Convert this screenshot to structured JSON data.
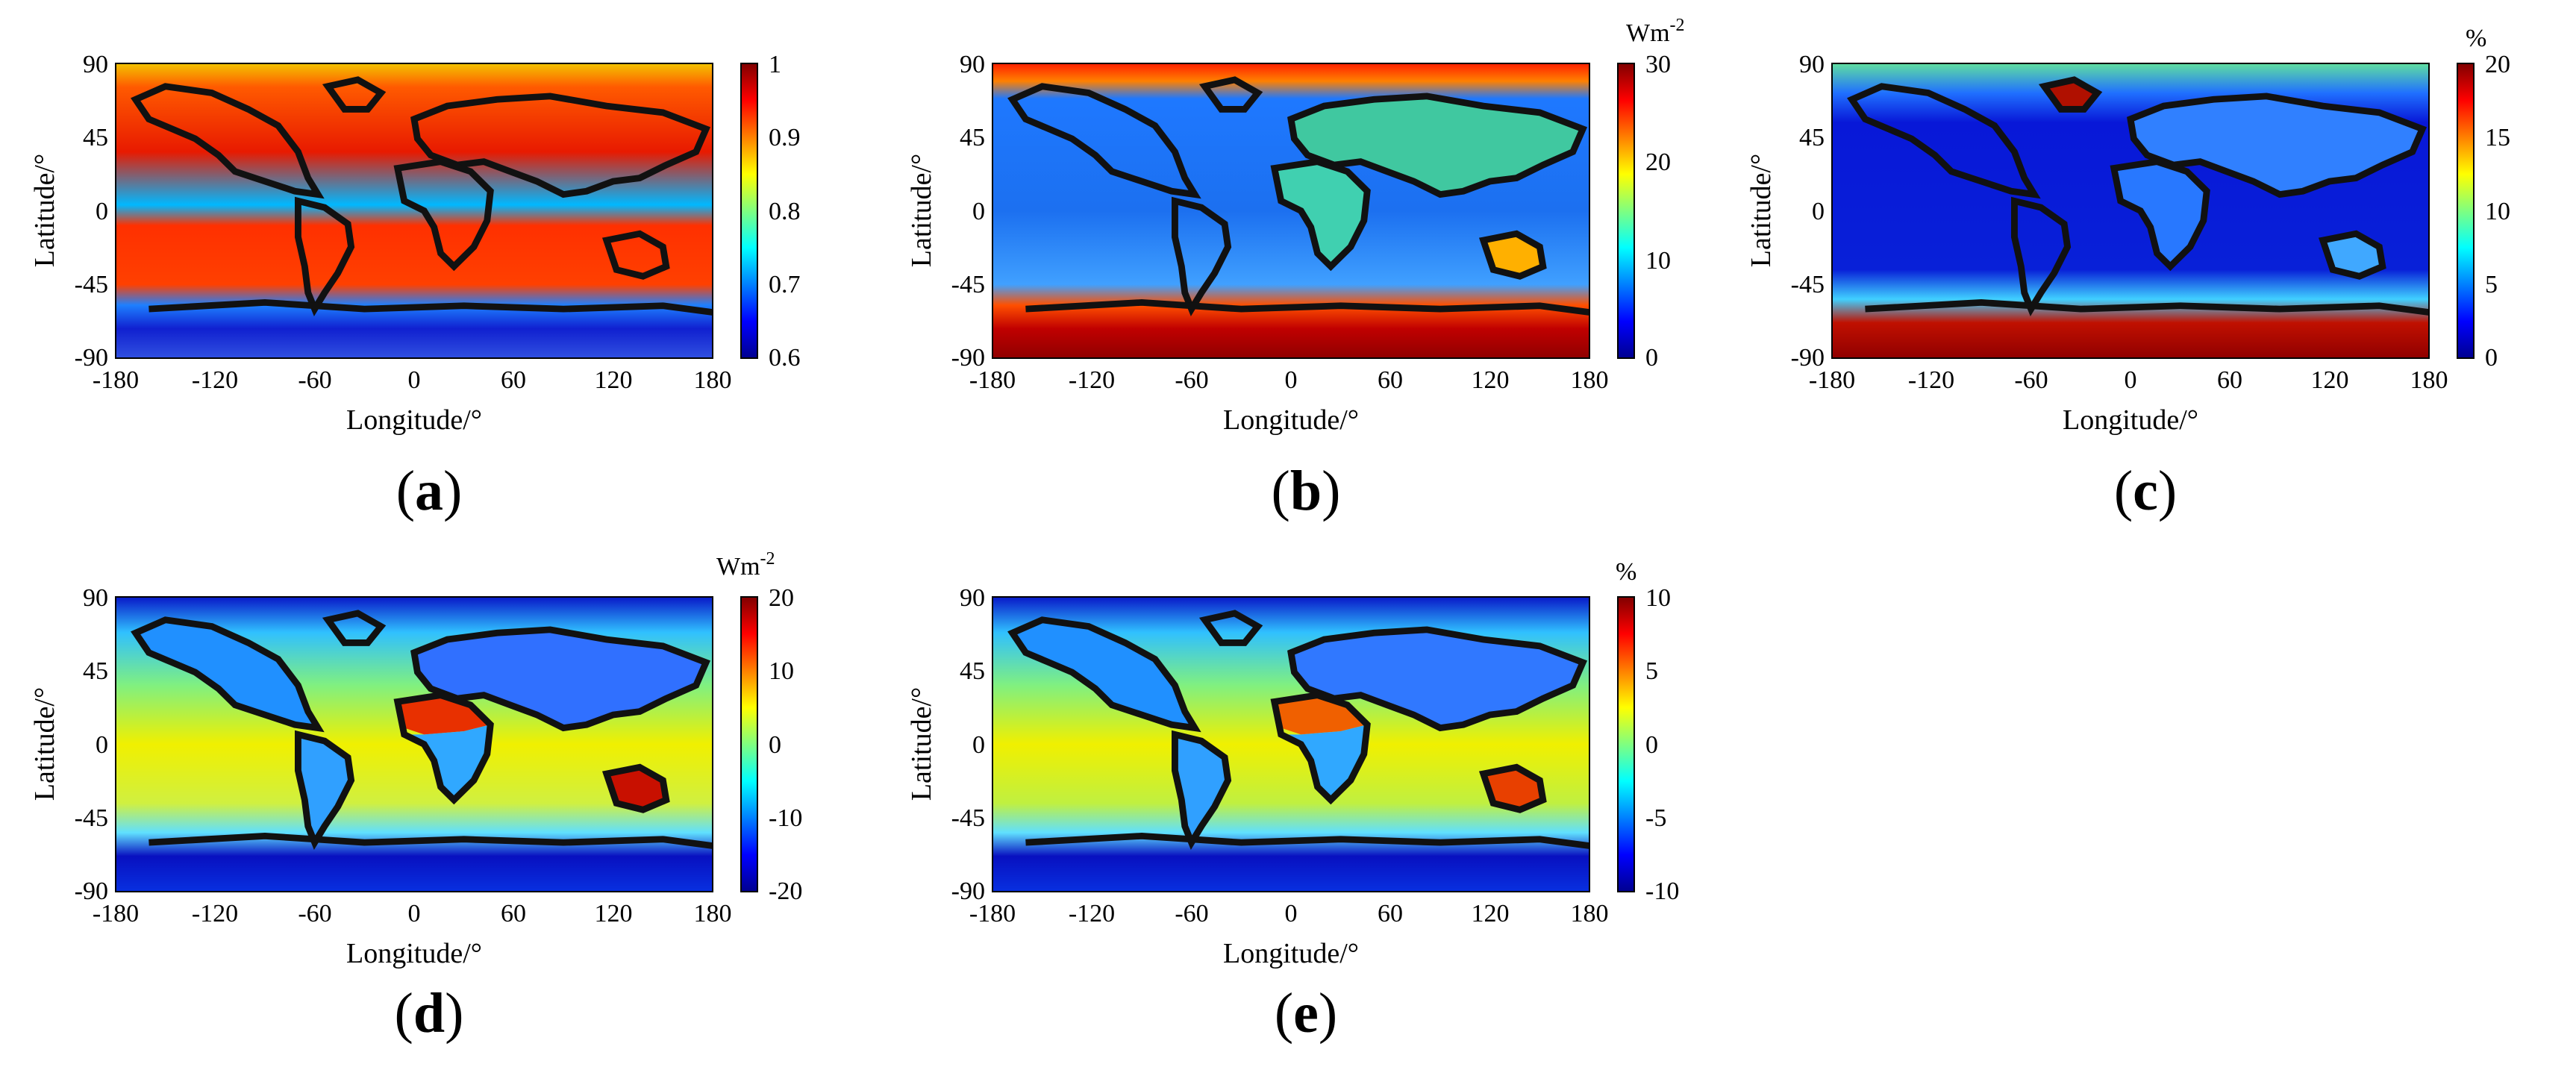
{
  "axes": {
    "xlabel": "Longitude/°",
    "ylabel": "Latitude/°",
    "xticks": [
      "-180",
      "-120",
      "-60",
      "0",
      "60",
      "120",
      "180"
    ],
    "yticks": [
      "90",
      "45",
      "0",
      "-45",
      "-90"
    ]
  },
  "chart_data": [
    {
      "type": "heatmap",
      "panel": "(a)",
      "caption_paren_open": "(",
      "caption_letter": "a",
      "caption_paren_close": ")",
      "xlabel": "Longitude/°",
      "ylabel": "Latitude/°",
      "xlim": [
        -180,
        180
      ],
      "ylim": [
        -90,
        90
      ],
      "unit": "",
      "colorbar": {
        "min": 0.6,
        "max": 1,
        "ticks": [
          "1",
          "0.9",
          "0.8",
          "0.7",
          "0.6"
        ]
      },
      "colormap": "jet"
    },
    {
      "type": "heatmap",
      "panel": "(b)",
      "caption_paren_open": "(",
      "caption_letter": "b",
      "caption_paren_close": ")",
      "xlabel": "Longitude/°",
      "ylabel": "Latitude/°",
      "xlim": [
        -180,
        180
      ],
      "ylim": [
        -90,
        90
      ],
      "unit": "Wm",
      "unit_sup": "-2",
      "colorbar": {
        "min": 0,
        "max": 30,
        "ticks": [
          "30",
          "20",
          "10",
          "0"
        ]
      },
      "colormap": "jet"
    },
    {
      "type": "heatmap",
      "panel": "(c)",
      "caption_paren_open": "(",
      "caption_letter": "c",
      "caption_paren_close": ")",
      "xlabel": "Longitude/°",
      "ylabel": "Latitude/°",
      "xlim": [
        -180,
        180
      ],
      "ylim": [
        -90,
        90
      ],
      "unit": "%",
      "unit_sup": "",
      "colorbar": {
        "min": 0,
        "max": 20,
        "ticks": [
          "20",
          "15",
          "10",
          "5",
          "0"
        ]
      },
      "colormap": "jet"
    },
    {
      "type": "heatmap",
      "panel": "(d)",
      "caption_paren_open": "(",
      "caption_letter": "d",
      "caption_paren_close": ")",
      "xlabel": "Longitude/°",
      "ylabel": "Latitude/°",
      "xlim": [
        -180,
        180
      ],
      "ylim": [
        -90,
        90
      ],
      "unit": "Wm",
      "unit_sup": "-2",
      "colorbar": {
        "min": -20,
        "max": 20,
        "ticks": [
          "20",
          "10",
          "0",
          "-10",
          "-20"
        ]
      },
      "colormap": "jet"
    },
    {
      "type": "heatmap",
      "panel": "(e)",
      "caption_paren_open": "(",
      "caption_letter": "e",
      "caption_paren_close": ")",
      "xlabel": "Longitude/°",
      "ylabel": "Latitude/°",
      "xlim": [
        -180,
        180
      ],
      "ylim": [
        -90,
        90
      ],
      "unit": "%",
      "unit_sup": "",
      "colorbar": {
        "min": -10,
        "max": 10,
        "ticks": [
          "10",
          "5",
          "0",
          "-5",
          "-10"
        ]
      },
      "colormap": "jet"
    }
  ]
}
